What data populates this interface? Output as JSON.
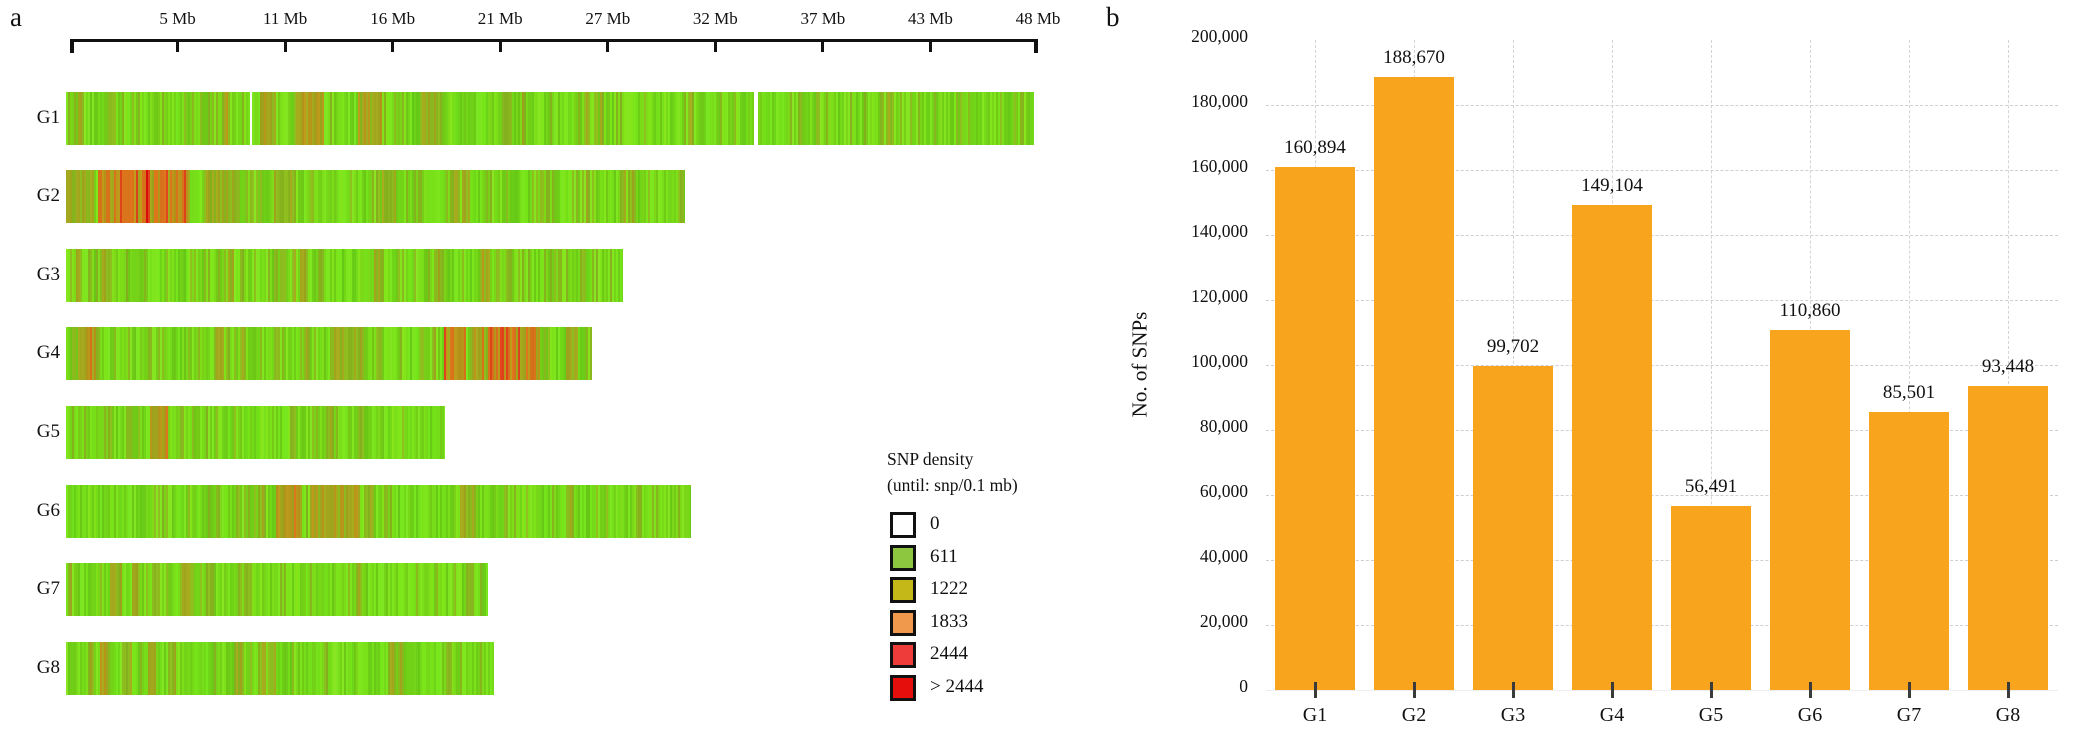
{
  "panel_a": {
    "label": "a",
    "ruler": {
      "tick_labels": [
        "5 Mb",
        "11 Mb",
        "16 Mb",
        "21 Mb",
        "27 Mb",
        "32 Mb",
        "37 Mb",
        "43 Mb",
        "48 Mb"
      ]
    },
    "legend": {
      "title_line1": "SNP density",
      "title_line2": "(until: snp/0.1 mb)",
      "entries": [
        {
          "label": "0",
          "color": "#ffffff"
        },
        {
          "label": "611",
          "color": "#8dc63f"
        },
        {
          "label": "1222",
          "color": "#c3b818"
        },
        {
          "label": "1833",
          "color": "#f0984b"
        },
        {
          "label": "2444",
          "color": "#ee3c3a"
        },
        {
          "label": "> 2444",
          "color": "#e60d0d"
        }
      ]
    },
    "chromosomes": [
      {
        "label": "G1",
        "length_mb": 48.0,
        "hotspots": [
          {
            "s": 0.2,
            "e": 0.215,
            "v": 0.62
          },
          {
            "s": 0.235,
            "e": 0.265,
            "v": 0.68
          },
          {
            "s": 0.3,
            "e": 0.325,
            "v": 0.66
          },
          {
            "s": 0.365,
            "e": 0.385,
            "v": 0.6
          },
          {
            "s": 0.45,
            "e": 0.46,
            "v": 0.55
          }
        ],
        "gaps": [
          0.19,
          0.712
        ]
      },
      {
        "label": "G2",
        "length_mb": 30.7,
        "hotspots": [
          {
            "s": 0.0,
            "e": 0.045,
            "v": 0.6
          },
          {
            "s": 0.05,
            "e": 0.125,
            "v": 0.82
          },
          {
            "s": 0.125,
            "e": 0.135,
            "v": 0.99
          },
          {
            "s": 0.135,
            "e": 0.2,
            "v": 0.8
          },
          {
            "s": 0.22,
            "e": 0.28,
            "v": 0.58
          },
          {
            "s": 0.33,
            "e": 0.37,
            "v": 0.55
          },
          {
            "s": 0.5,
            "e": 0.53,
            "v": 0.55
          },
          {
            "s": 0.62,
            "e": 0.65,
            "v": 0.55
          }
        ],
        "gaps": []
      },
      {
        "label": "G3",
        "length_mb": 27.6,
        "hotspots": [
          {
            "s": 0.06,
            "e": 0.075,
            "v": 0.62
          },
          {
            "s": 0.29,
            "e": 0.3,
            "v": 0.6
          },
          {
            "s": 0.42,
            "e": 0.43,
            "v": 0.58
          },
          {
            "s": 0.55,
            "e": 0.57,
            "v": 0.6
          },
          {
            "s": 0.74,
            "e": 0.76,
            "v": 0.62
          },
          {
            "s": 0.92,
            "e": 0.93,
            "v": 0.55
          }
        ],
        "gaps": []
      },
      {
        "label": "G4",
        "length_mb": 26.1,
        "hotspots": [
          {
            "s": 0.02,
            "e": 0.055,
            "v": 0.72
          },
          {
            "s": 0.28,
            "e": 0.3,
            "v": 0.58
          },
          {
            "s": 0.5,
            "e": 0.56,
            "v": 0.6
          },
          {
            "s": 0.715,
            "e": 0.76,
            "v": 0.82
          },
          {
            "s": 0.77,
            "e": 0.8,
            "v": 0.7
          },
          {
            "s": 0.8,
            "e": 0.86,
            "v": 0.85
          },
          {
            "s": 0.86,
            "e": 0.9,
            "v": 0.75
          },
          {
            "s": 0.95,
            "e": 0.97,
            "v": 0.6
          }
        ],
        "gaps": []
      },
      {
        "label": "G5",
        "length_mb": 18.8,
        "hotspots": [
          {
            "s": 0.1,
            "e": 0.12,
            "v": 0.55
          },
          {
            "s": 0.22,
            "e": 0.265,
            "v": 0.7
          },
          {
            "s": 0.3,
            "e": 0.31,
            "v": 0.55
          }
        ],
        "gaps": []
      },
      {
        "label": "G6",
        "length_mb": 31.0,
        "hotspots": [
          {
            "s": 0.335,
            "e": 0.375,
            "v": 0.72
          },
          {
            "s": 0.39,
            "e": 0.47,
            "v": 0.68
          },
          {
            "s": 0.63,
            "e": 0.655,
            "v": 0.62
          },
          {
            "s": 0.8,
            "e": 0.81,
            "v": 0.55
          },
          {
            "s": 0.91,
            "e": 0.92,
            "v": 0.55
          }
        ],
        "gaps": []
      },
      {
        "label": "G7",
        "length_mb": 20.9,
        "hotspots": [
          {
            "s": 0.1,
            "e": 0.13,
            "v": 0.6
          },
          {
            "s": 0.155,
            "e": 0.175,
            "v": 0.62
          },
          {
            "s": 0.2,
            "e": 0.22,
            "v": 0.58
          },
          {
            "s": 0.27,
            "e": 0.3,
            "v": 0.62
          },
          {
            "s": 0.33,
            "e": 0.35,
            "v": 0.58
          },
          {
            "s": 0.42,
            "e": 0.44,
            "v": 0.55
          }
        ],
        "gaps": []
      },
      {
        "label": "G8",
        "length_mb": 21.2,
        "hotspots": [
          {
            "s": 0.075,
            "e": 0.095,
            "v": 0.72
          },
          {
            "s": 0.13,
            "e": 0.15,
            "v": 0.58
          },
          {
            "s": 0.19,
            "e": 0.21,
            "v": 0.6
          },
          {
            "s": 0.235,
            "e": 0.255,
            "v": 0.58
          },
          {
            "s": 0.47,
            "e": 0.49,
            "v": 0.55
          },
          {
            "s": 0.6,
            "e": 0.61,
            "v": 0.55
          }
        ],
        "gaps": []
      }
    ]
  },
  "panel_b": {
    "label": "b",
    "ylabel": "No. of SNPs",
    "bar_color": "#F8A41C",
    "grid_color": "#cfcfcf",
    "categories": [
      "G1",
      "G2",
      "G3",
      "G4",
      "G5",
      "G6",
      "G7",
      "G8"
    ],
    "values": [
      160894,
      188670,
      99702,
      149104,
      56491,
      110860,
      85501,
      93448
    ],
    "values_formatted": [
      "160,894",
      "188,670",
      "99,702",
      "149,104",
      "56,491",
      "110,860",
      "85,501",
      "93,448"
    ],
    "ytick_labels": [
      "0",
      "20,000",
      "40,000",
      "60,000",
      "80,000",
      "100,000",
      "120,000",
      "140,000",
      "160,000",
      "180,000",
      "200,000"
    ]
  },
  "chart_data": [
    {
      "type": "heatmap",
      "title": "SNP density along chromosomes (snp/0.1 mb)",
      "rows": [
        "G1",
        "G2",
        "G3",
        "G4",
        "G5",
        "G6",
        "G7",
        "G8"
      ],
      "row_length_mb": [
        48.0,
        30.7,
        27.6,
        26.1,
        18.8,
        31.0,
        20.9,
        21.2
      ],
      "x_axis_tick_labels_mb": [
        5,
        11,
        16,
        21,
        27,
        32,
        37,
        43,
        48
      ],
      "legend_title": "SNP density (until: snp/0.1 mb)",
      "legend_breaks": [
        "0",
        "611",
        "1222",
        "1833",
        "2444",
        "> 2444"
      ],
      "legend_colors": [
        "#ffffff",
        "#8dc63f",
        "#c3b818",
        "#f0984b",
        "#ee3c3a",
        "#e60d0d"
      ],
      "high_density_regions": {
        "G1": "scattered olive bands ~10-19 Mb",
        "G2": "strong red/orange block ~1.5-6 Mb",
        "G3": "sparse olive stripes",
        "G4": "orange/red block ~18.5-23.5 Mb and olive band near 0.5-1.5 Mb",
        "G5": "olive band ~4-5 Mb",
        "G6": "olive/orange region ~10.5-14.5 Mb",
        "G7": "scattered olive stripes ~2-9 Mb",
        "G8": "olive/brown band ~1.5-2 Mb, scattered stripes"
      }
    },
    {
      "type": "bar",
      "categories": [
        "G1",
        "G2",
        "G3",
        "G4",
        "G5",
        "G6",
        "G7",
        "G8"
      ],
      "values": [
        160894,
        188670,
        99702,
        149104,
        56491,
        110860,
        85501,
        93448
      ],
      "title": "",
      "xlabel": "",
      "ylabel": "No. of SNPs",
      "ylim": [
        0,
        200000
      ],
      "ytick_step": 20000,
      "bar_color": "#F8A41C",
      "grid": "dashed, horizontal every 20,000 and vertical at each category center",
      "data_labels": "above bars, comma-formatted"
    }
  ]
}
